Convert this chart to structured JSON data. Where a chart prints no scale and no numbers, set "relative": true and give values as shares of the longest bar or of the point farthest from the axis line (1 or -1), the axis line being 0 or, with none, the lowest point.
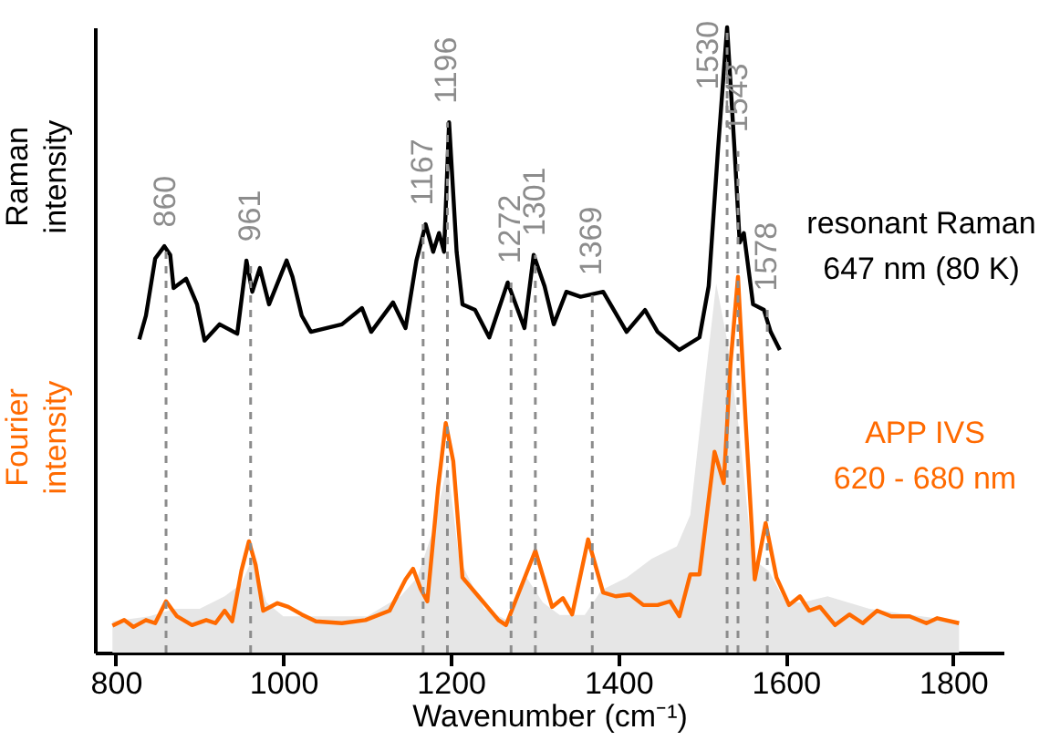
{
  "chart_data": {
    "type": "line",
    "relative": true,
    "xlabel": "Wavenumber (cm⁻¹)",
    "ylabel": "Raman intensity",
    "annotations": [
      "Fourier intensity"
    ],
    "xlim": [
      775,
      1860
    ],
    "xticks": [
      800,
      1000,
      1200,
      1400,
      1600,
      1800
    ],
    "grid": false,
    "legend": false,
    "marker": "none",
    "line_style": "solid",
    "series": [
      {
        "name": "resonant Raman 647 nm (80 K)",
        "color": "#000000",
        "x": [
          828,
          836,
          847,
          858,
          865,
          869,
          884,
          897,
          906,
          924,
          945,
          956,
          963,
          972,
          983,
          1004,
          1011,
          1022,
          1033,
          1070,
          1094,
          1105,
          1131,
          1146,
          1159,
          1170,
          1179,
          1186,
          1192,
          1198,
          1207,
          1214,
          1229,
          1246,
          1268,
          1288,
          1299,
          1312,
          1323,
          1338,
          1355,
          1382,
          1410,
          1432,
          1447,
          1473,
          1497,
          1508,
          1519,
          1530,
          1539,
          1545,
          1550,
          1561,
          1574,
          1582,
          1593
        ],
        "values": [
          0.501,
          0.539,
          0.63,
          0.65,
          0.636,
          0.583,
          0.598,
          0.557,
          0.499,
          0.525,
          0.51,
          0.627,
          0.577,
          0.615,
          0.557,
          0.627,
          0.601,
          0.539,
          0.513,
          0.525,
          0.551,
          0.513,
          0.56,
          0.519,
          0.627,
          0.685,
          0.641,
          0.671,
          0.641,
          0.848,
          0.641,
          0.557,
          0.548,
          0.504,
          0.592,
          0.519,
          0.636,
          0.586,
          0.525,
          0.577,
          0.569,
          0.577,
          0.513,
          0.548,
          0.513,
          0.484,
          0.504,
          0.586,
          0.802,
          1.0,
          0.802,
          0.656,
          0.671,
          0.557,
          0.548,
          0.513,
          0.484
        ]
      },
      {
        "name": "APP IVS 620 - 680 nm",
        "color": "#ff6a00",
        "x": [
          796,
          810,
          821,
          836,
          847,
          860,
          873,
          891,
          908,
          919,
          930,
          939,
          950,
          959,
          967,
          976,
          993,
          1006,
          1022,
          1039,
          1070,
          1098,
          1127,
          1146,
          1155,
          1164,
          1172,
          1185,
          1194,
          1203,
          1214,
          1233,
          1257,
          1266,
          1301,
          1321,
          1334,
          1345,
          1364,
          1382,
          1397,
          1414,
          1430,
          1447,
          1462,
          1473,
          1486,
          1497,
          1515,
          1526,
          1534,
          1543,
          1552,
          1563,
          1576,
          1589,
          1604,
          1617,
          1628,
          1641,
          1659,
          1676,
          1692,
          1709,
          1726,
          1748,
          1768,
          1781,
          1807
        ],
        "values": [
          0.043,
          0.052,
          0.041,
          0.052,
          0.047,
          0.082,
          0.058,
          0.044,
          0.052,
          0.047,
          0.067,
          0.05,
          0.131,
          0.178,
          0.14,
          0.067,
          0.079,
          0.073,
          0.061,
          0.05,
          0.047,
          0.052,
          0.067,
          0.117,
          0.134,
          0.102,
          0.082,
          0.265,
          0.367,
          0.306,
          0.12,
          0.09,
          0.052,
          0.044,
          0.163,
          0.073,
          0.087,
          0.061,
          0.181,
          0.096,
          0.09,
          0.093,
          0.076,
          0.076,
          0.082,
          0.058,
          0.125,
          0.125,
          0.321,
          0.271,
          0.461,
          0.601,
          0.373,
          0.117,
          0.207,
          0.12,
          0.076,
          0.09,
          0.067,
          0.073,
          0.044,
          0.061,
          0.047,
          0.067,
          0.058,
          0.058,
          0.047,
          0.055,
          0.047
        ]
      },
      {
        "type": "area",
        "color": "#e6e6e6",
        "x": [
          796,
          840,
          870,
          900,
          930,
          950,
          963,
          980,
          1000,
          1050,
          1100,
          1140,
          1160,
          1180,
          1196,
          1210,
          1240,
          1270,
          1288,
          1310,
          1330,
          1360,
          1380,
          1410,
          1440,
          1470,
          1486,
          1505,
          1517,
          1530,
          1545,
          1560,
          1580,
          1600,
          1620,
          1650,
          1700,
          1750,
          1807
        ],
        "values": [
          0.05,
          0.058,
          0.07,
          0.07,
          0.09,
          0.11,
          0.15,
          0.08,
          0.058,
          0.058,
          0.058,
          0.09,
          0.12,
          0.2,
          0.3,
          0.15,
          0.07,
          0.05,
          0.125,
          0.08,
          0.06,
          0.06,
          0.1,
          0.12,
          0.15,
          0.17,
          0.22,
          0.45,
          0.59,
          0.5,
          0.35,
          0.15,
          0.13,
          0.08,
          0.08,
          0.09,
          0.07,
          0.06,
          0.05
        ]
      }
    ],
    "ref_lines": [
      {
        "axis": "x",
        "value": 860,
        "label": "860",
        "color": "#8c8c8c",
        "line_style": "dashed"
      },
      {
        "axis": "x",
        "value": 961,
        "label": "961",
        "color": "#8c8c8c",
        "line_style": "dashed"
      },
      {
        "axis": "x",
        "value": 1167,
        "label": "1167",
        "color": "#8c8c8c",
        "line_style": "dashed"
      },
      {
        "axis": "x",
        "value": 1196,
        "label": "1196",
        "color": "#8c8c8c",
        "line_style": "dashed"
      },
      {
        "axis": "x",
        "value": 1272,
        "label": "1272",
        "color": "#8c8c8c",
        "line_style": "dashed"
      },
      {
        "axis": "x",
        "value": 1301,
        "label": "1301",
        "color": "#8c8c8c",
        "line_style": "dashed"
      },
      {
        "axis": "x",
        "value": 1369,
        "label": "1369",
        "color": "#8c8c8c",
        "line_style": "dashed"
      },
      {
        "axis": "x",
        "value": 1530,
        "label": "1530",
        "color": "#8c8c8c",
        "line_style": "dashed"
      },
      {
        "axis": "x",
        "value": 1543,
        "label": "1543",
        "color": "#8c8c8c",
        "line_style": "dashed"
      },
      {
        "axis": "x",
        "value": 1578,
        "label": "1578",
        "color": "#8c8c8c",
        "line_style": "dashed"
      }
    ]
  }
}
